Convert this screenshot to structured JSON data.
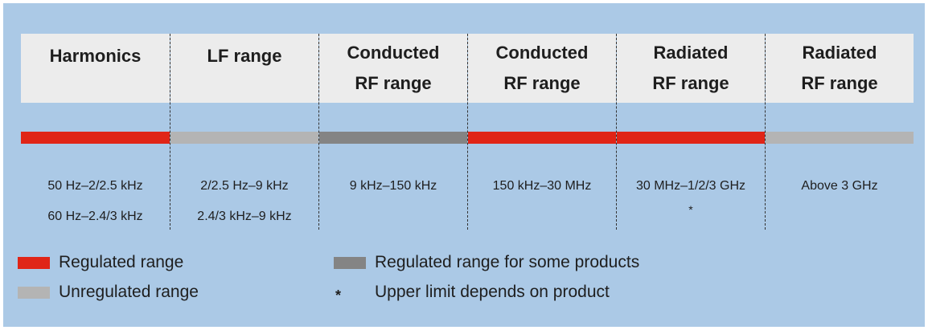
{
  "colors": {
    "panel_background": "#abc9e6",
    "header_background": "#ececec",
    "regulated": "#e02517",
    "unregulated": "#b4b4b4",
    "regulated_some": "#848484"
  },
  "columns": [
    {
      "header": "Harmonics",
      "category": "regulated",
      "frequency": "50 Hz–2/2.5 kHz\n60 Hz–2.4/3 kHz",
      "note": ""
    },
    {
      "header": "LF range",
      "category": "unregulated",
      "frequency": "2/2.5 Hz–9 kHz\n2.4/3 kHz–9 kHz",
      "note": ""
    },
    {
      "header": "Conducted\nRF range",
      "category": "regulated_some",
      "frequency": "9 kHz–150 kHz",
      "note": ""
    },
    {
      "header": "Conducted\nRF range",
      "category": "regulated",
      "frequency": "150 kHz–30 MHz",
      "note": ""
    },
    {
      "header": "Radiated\nRF range",
      "category": "regulated",
      "frequency": "30 MHz–1/2/3 GHz",
      "note": "*"
    },
    {
      "header": "Radiated\nRF range",
      "category": "unregulated",
      "frequency": "Above 3 GHz",
      "note": ""
    }
  ],
  "legend": {
    "regulated": "Regulated range",
    "unregulated": "Unregulated range",
    "regulated_some": "Regulated range for some products",
    "asterisk_symbol": "*",
    "asterisk_text": "Upper limit depends on product"
  }
}
